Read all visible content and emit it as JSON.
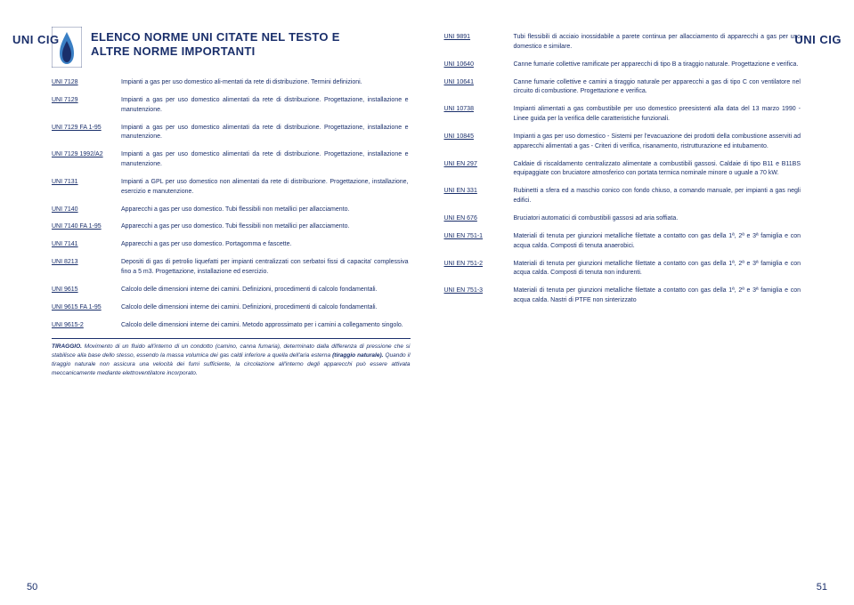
{
  "side_label": "UNI CIG",
  "heading": "ELENCO NORME UNI CITATE NEL TESTO E\nALTRE NORME IMPORTANTI",
  "page_left": "50",
  "page_right": "51",
  "footnote_label": "TIRAGGIO.",
  "footnote_body": " Movimento di un fluido all'interno di un condotto (camino, canna fumaria), determinato dalla differenza di pressione che si stabilisce alla base dello stesso, essendo la massa volumica dei gas caldi inferiore a quella dell'aria esterna ",
  "footnote_bold2": "(tiraggio naturale).",
  "footnote_body2": " Quando il tiraggio naturale non assicura una velocità dei fumi sufficiente, la circolazione all'interno degli apparecchi può essere attivata meccanicamente mediante elettroventilatore incorporato.",
  "left_entries": [
    {
      "code": "UNI 7128",
      "desc": "Impianti a gas per uso domestico ali-mentati da rete di distribuzione. Termini definizioni."
    },
    {
      "code": "UNI 7129",
      "desc": "Impianti a gas per uso domestico alimentati da rete di distribuzione. Progettazione, installazione e manutenzione."
    },
    {
      "code": "UNI 7129 FA 1-95",
      "desc": "Impianti a gas per uso domestico alimentati da rete di distribuzione. Progettazione, installazione e manutenzione."
    },
    {
      "code": "UNI 7129 1992/A2",
      "desc": "Impianti a gas per uso domestico alimentati da rete di distribuzione. Progettazione, installazione e manutenzione."
    },
    {
      "code": "UNI 7131",
      "desc": "Impianti a GPL per uso domestico non alimentati da rete di distribuzione. Progettazione, installazione, esercizio e manutenzione."
    },
    {
      "code": "UNI 7140",
      "desc": "Apparecchi a gas per uso domestico. Tubi flessibili non metallici per allacciamento."
    },
    {
      "code": "UNI 7140  FA 1-95",
      "desc": "Apparecchi a gas per uso domestico. Tubi flessibili non metallici per allacciamento."
    },
    {
      "code": "UNI 7141",
      "desc": "Apparecchi a gas per uso domestico. Portagomma e fascette."
    },
    {
      "code": "UNI 8213",
      "desc": "Depositi di gas di petrolio liquefatti per impianti centralizzati con serbatoi fissi di capacita' complessiva fino a 5 m3. Progettazione, installazione ed esercizio."
    },
    {
      "code": "UNI 9615",
      "desc": "Calcolo delle dimensioni interne dei camini. Definizioni, procedimenti di calcolo fondamentali."
    },
    {
      "code": "UNI 9615 FA 1-95",
      "desc": "Calcolo delle dimensioni interne dei camini. Definizioni, procedimenti di calcolo fondamentali."
    },
    {
      "code": "UNI 9615-2",
      "desc": "Calcolo delle dimensioni interne dei camini. Metodo approssimato per i camini a collegamento singolo."
    }
  ],
  "right_entries": [
    {
      "code": "UNI 9891",
      "desc": "Tubi flessibili di acciaio inossidabile a parete continua per allacciamento di apparecchi a gas per uso domestico e similare."
    },
    {
      "code": "UNI 10640",
      "desc": "Canne fumarie collettive ramificate per apparecchi di tipo B a tiraggio naturale. Progettazione e verifica."
    },
    {
      "code": "UNI 10641",
      "desc": "Canne fumarie collettive e camini a tiraggio naturale per apparecchi a gas di tipo C con ventilatore nel circuito di combustione. Progettazione e verifica."
    },
    {
      "code": "UNI 10738",
      "desc": "Impianti alimentati a gas combustibile per uso domestico preesistenti alla data del 13 marzo 1990 - Linee guida per la verifica delle caratteristiche funzionali."
    },
    {
      "code": "UNI 10845",
      "desc": "Impianti a gas per uso domestico - Sistemi per l'evacuazione dei prodotti della combustione asserviti ad apparecchi alimentati a gas - Criteri di verifica, risanamento, ristrutturazione ed intubamento."
    },
    {
      "code": "UNI EN 297",
      "desc": "Caldaie di riscaldamento centralizzato alimentate a combustibili gassosi. Caldaie di tipo B11 e B11BS equipaggiate con bruciatore atmosferico con portata termica nominale minore o uguale a 70 kW."
    },
    {
      "code": "UNI EN 331",
      "desc": "Rubinetti a sfera ed a maschio conico con fondo chiuso, a comando manuale, per impianti a gas negli edifici."
    },
    {
      "code": "UNI EN 676",
      "desc": "Bruciatori automatici di combustibili gassosi ad aria soffiata."
    },
    {
      "code": "UNI EN 751-1",
      "desc": "Materiali di tenuta per giunzioni metalliche filettate a contatto con gas della 1ª, 2ª e 3ª famiglia e con acqua calda. Composti di tenuta anaerobici."
    },
    {
      "code": "UNI EN 751-2",
      "desc": "Materiali di tenuta per giunzioni metalliche filettate a contatto con gas della 1ª, 2ª e 3ª famiglia e con acqua calda. Composti di tenuta non indurenti."
    },
    {
      "code": "UNI EN 751-3",
      "desc": "Materiali di tenuta per giunzioni metalliche filettate a contatto con gas della 1ª, 2ª e 3ª famiglia e con acqua calda. Nastri di PTFE non sinterizzato"
    }
  ]
}
